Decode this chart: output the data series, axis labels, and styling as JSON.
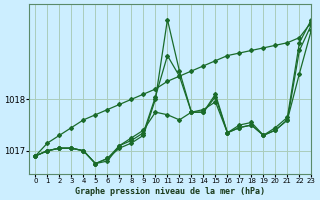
{
  "title": "Graphe pression niveau de la mer (hPa)",
  "bg_color": "#cceeff",
  "grid_color": "#aaccbb",
  "line_color": "#1a6b2a",
  "xlim": [
    -0.5,
    23
  ],
  "ylim": [
    1016.55,
    1019.85
  ],
  "yticks": [
    1017,
    1018
  ],
  "xticks": [
    0,
    1,
    2,
    3,
    4,
    5,
    6,
    7,
    8,
    9,
    10,
    11,
    12,
    13,
    14,
    15,
    16,
    17,
    18,
    19,
    20,
    21,
    22,
    23
  ],
  "series": [
    [
      1016.9,
      1017.0,
      1017.05,
      1017.05,
      1017.0,
      1016.75,
      1016.85,
      1017.05,
      1017.15,
      1017.3,
      1018.0,
      1019.55,
      1018.55,
      1017.75,
      1017.75,
      1018.1,
      1017.35,
      1017.5,
      1017.55,
      1017.3,
      1017.45,
      1017.65,
      1019.1,
      1019.55
    ],
    [
      1016.9,
      1017.0,
      1017.05,
      1017.05,
      1017.0,
      1016.75,
      1016.85,
      1017.1,
      1017.2,
      1017.35,
      1018.05,
      1018.85,
      1018.45,
      1017.75,
      1017.75,
      1018.05,
      1017.35,
      1017.45,
      1017.5,
      1017.3,
      1017.4,
      1017.6,
      1018.95,
      1019.45
    ],
    [
      1016.9,
      1017.0,
      1017.05,
      1017.05,
      1017.0,
      1016.75,
      1016.8,
      1017.1,
      1017.25,
      1017.4,
      1017.75,
      1017.7,
      1017.6,
      1017.75,
      1017.8,
      1017.95,
      1017.35,
      1017.45,
      1017.5,
      1017.3,
      1017.4,
      1017.6,
      1018.5,
      1019.35
    ],
    [
      1016.9,
      1017.15,
      1017.3,
      1017.45,
      1017.6,
      1017.7,
      1017.8,
      1017.9,
      1018.0,
      1018.1,
      1018.2,
      1018.35,
      1018.45,
      1018.55,
      1018.65,
      1018.75,
      1018.85,
      1018.9,
      1018.95,
      1019.0,
      1019.05,
      1019.1,
      1019.2,
      1019.5
    ]
  ]
}
